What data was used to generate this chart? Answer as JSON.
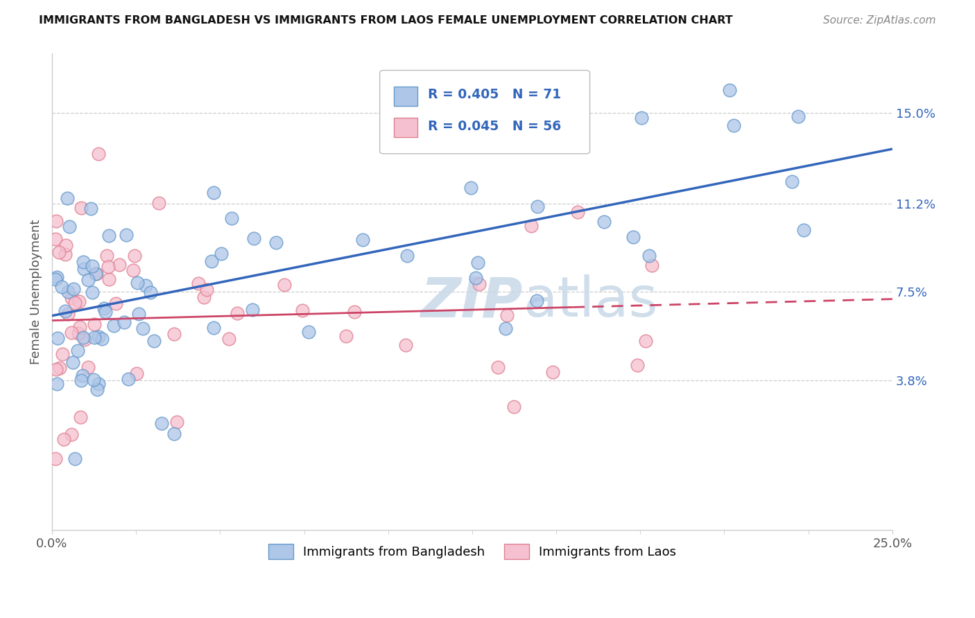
{
  "title": "IMMIGRANTS FROM BANGLADESH VS IMMIGRANTS FROM LAOS FEMALE UNEMPLOYMENT CORRELATION CHART",
  "source": "Source: ZipAtlas.com",
  "ylabel": "Female Unemployment",
  "xlim": [
    0.0,
    0.25
  ],
  "ylim": [
    -0.025,
    0.175
  ],
  "ytick_values": [
    0.038,
    0.075,
    0.112,
    0.15
  ],
  "ytick_labels": [
    "3.8%",
    "7.5%",
    "11.2%",
    "15.0%"
  ],
  "grid_color": "#cccccc",
  "background_color": "#ffffff",
  "series1_color": "#aec6e8",
  "series1_edge": "#6699cc",
  "series2_color": "#f5c0d0",
  "series2_edge": "#e08090",
  "line1_color": "#3366bb",
  "line2_color": "#cc4466",
  "line1_start_y": 0.065,
  "line1_end_y": 0.135,
  "line2_start_y": 0.063,
  "line2_end_y": 0.072,
  "line2_solid_end_x": 0.155,
  "watermark_color": "#c8d8e8"
}
